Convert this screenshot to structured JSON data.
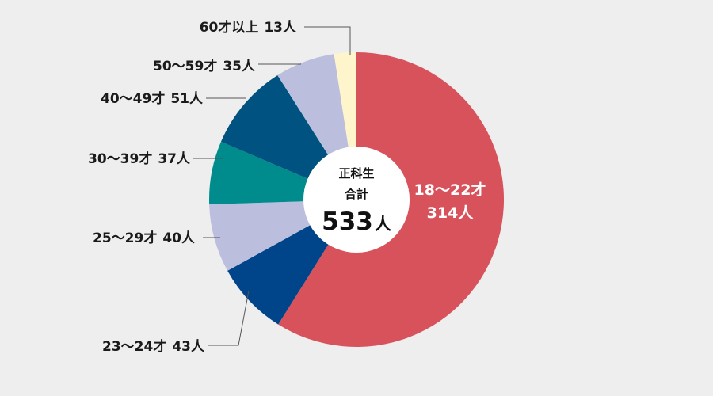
{
  "chart_data": {
    "type": "pie",
    "variant": "donut",
    "center": {
      "line1": "正科生",
      "line2": "合計",
      "total": "533",
      "unit": "人"
    },
    "slices": [
      {
        "label": "18～22才",
        "value": 314,
        "value_text": "314人",
        "color": "#d8525c"
      },
      {
        "label": "23～24才",
        "value": 43,
        "value_text": "43人",
        "color": "#00448a"
      },
      {
        "label": "25～29才",
        "value": 40,
        "value_text": "40人",
        "color": "#bbbedd"
      },
      {
        "label": "30～39才",
        "value": 37,
        "value_text": "37人",
        "color": "#008c8c"
      },
      {
        "label": "40～49才",
        "value": 51,
        "value_text": "51人",
        "color": "#005380"
      },
      {
        "label": "50～59才",
        "value": 35,
        "value_text": "35人",
        "color": "#bbbedd"
      },
      {
        "label": "60才以上",
        "value": 13,
        "value_text": "13人",
        "color": "#fff5cc"
      }
    ],
    "start_angle": "12 o'clock",
    "direction": "clockwise",
    "label_placement": "first slice labelled inside; others on the left with leader lines"
  },
  "colors": {
    "background": "#eeeeee",
    "hole": "#ffffff",
    "text": "#1a1a1a",
    "inside_text": "#ffffff",
    "leader": "#555555"
  }
}
